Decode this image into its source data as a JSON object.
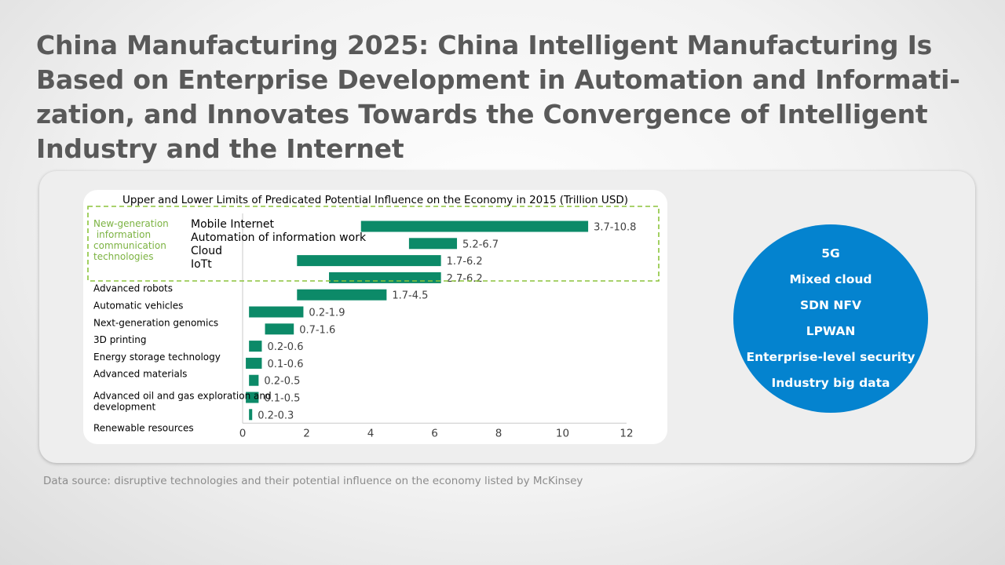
{
  "slide": {
    "title": "China Manufacturing 2025: China Intelligent Manufacturing Is Based on Enterprise Development in Automation and Informati-zation, and Innovates Towards the Convergence of Intelligent Industry and the Internet",
    "source": "Data source: disruptive technologies and their potential influence on the economy listed by McKinsey"
  },
  "circle": {
    "items": [
      "5G",
      "Mixed cloud",
      "SDN  NFV",
      "LPWAN",
      "Enterprise-level security",
      "Industry big data"
    ]
  },
  "colors": {
    "bar": "#0c8a68",
    "highlight_box": "#8cc43c",
    "circle": "#0483cf"
  },
  "chart_data": {
    "type": "bar",
    "orientation": "horizontal",
    "title": "Upper and Lower Limits of Predicated Potential Influence on the  Economy in 2015 (Trillion  USD)",
    "group_label": "New-generation information communication technologies",
    "categories": [
      "Mobile Internet",
      "Automation of information work",
      "Cloud",
      "IoTt",
      "Advanced robots",
      "Automatic vehicles",
      "Next-generation genomics",
      "3D printing",
      "Energy storage technology",
      "Advanced materials",
      "Advanced oil and gas exploration and development",
      "Renewable resources"
    ],
    "ranges": [
      [
        3.7,
        10.8
      ],
      [
        5.2,
        6.7
      ],
      [
        1.7,
        6.2
      ],
      [
        2.7,
        6.2
      ],
      [
        1.7,
        4.5
      ],
      [
        0.2,
        1.9
      ],
      [
        0.7,
        1.6
      ],
      [
        0.2,
        0.6
      ],
      [
        0.1,
        0.6
      ],
      [
        0.2,
        0.5
      ],
      [
        0.1,
        0.5
      ],
      [
        0.2,
        0.3
      ]
    ],
    "data_labels": [
      "3.7-10.8",
      "5.2-6.7",
      "1.7-6.2",
      "2.7-6.2",
      "1.7-4.5",
      "0.2-1.9",
      "0.7-1.6",
      "0.2-0.6",
      "0.1-0.6",
      "0.2-0.5",
      "0.1-0.5",
      "0.2-0.3"
    ],
    "x_ticks": [
      0,
      2,
      4,
      6,
      8,
      10,
      12
    ],
    "xlim": [
      0,
      12
    ],
    "grid": false
  }
}
